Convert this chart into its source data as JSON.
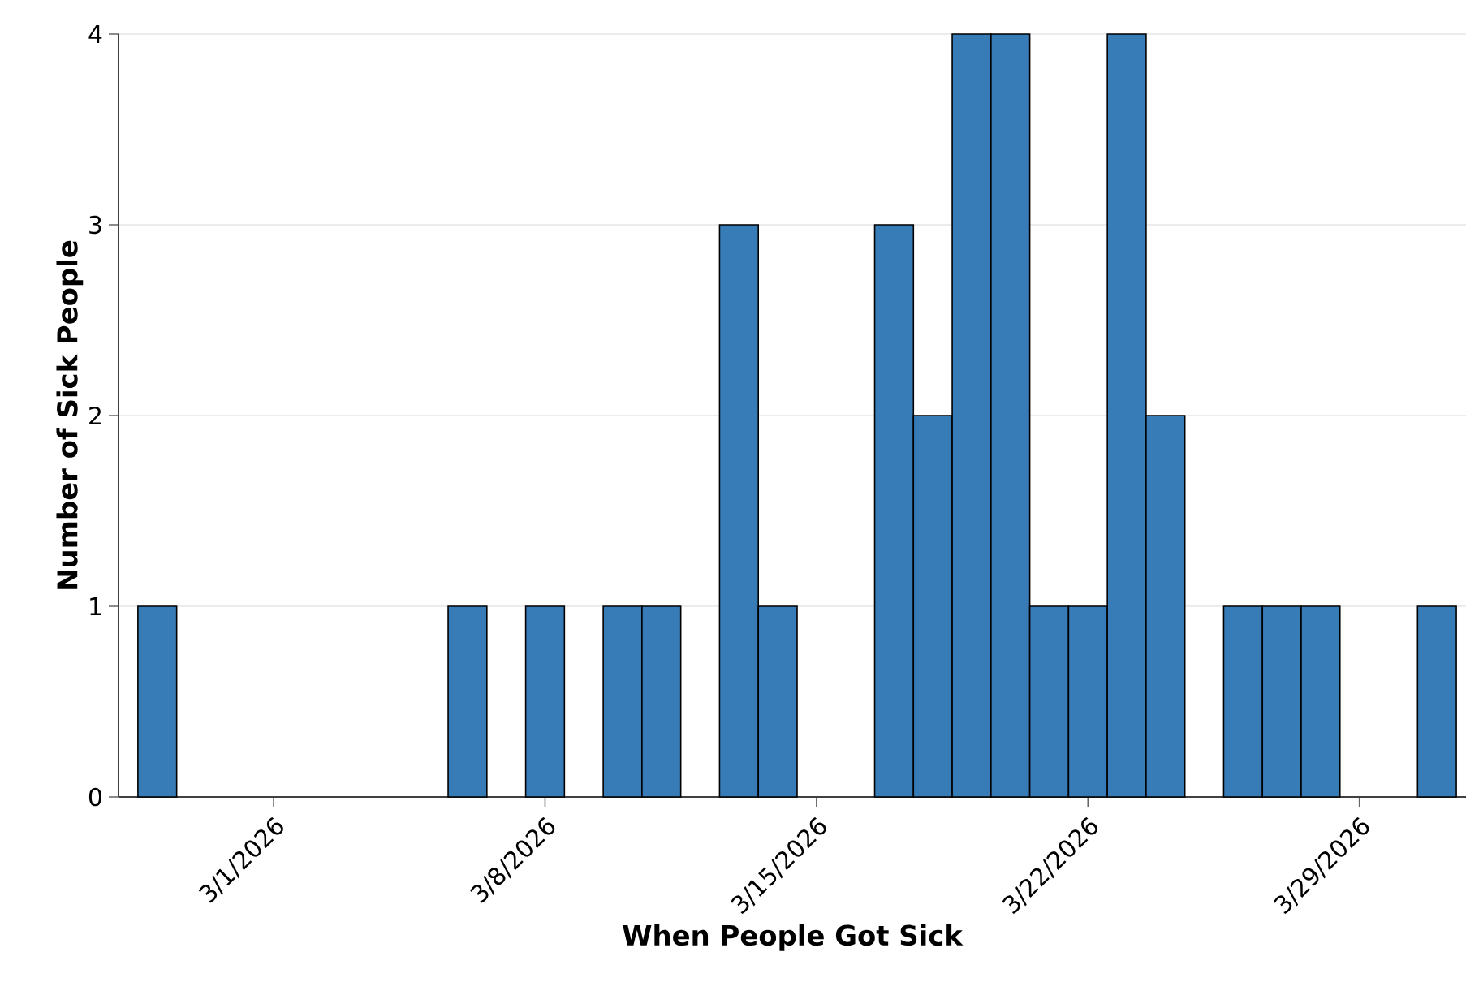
{
  "chart_data": {
    "type": "bar",
    "xlabel": "When People Got Sick",
    "ylabel": "Number of Sick People",
    "x": [
      "2026-02-26",
      "2026-03-06",
      "2026-03-08",
      "2026-03-10",
      "2026-03-11",
      "2026-03-13",
      "2026-03-14",
      "2026-03-17",
      "2026-03-18",
      "2026-03-19",
      "2026-03-20",
      "2026-03-21",
      "2026-03-22",
      "2026-03-23",
      "2026-03-24",
      "2026-03-26",
      "2026-03-27",
      "2026-03-28",
      "2026-03-31"
    ],
    "values": [
      1,
      1,
      1,
      1,
      1,
      3,
      1,
      3,
      2,
      4,
      4,
      1,
      1,
      4,
      2,
      1,
      1,
      1,
      1
    ],
    "color": "#377bb7",
    "xlim": [
      "2026-02-25",
      "2026-03-31T18:00"
    ],
    "xticks": [
      {
        "value": "2026-03-01",
        "label": "3/1/2026"
      },
      {
        "value": "2026-03-08",
        "label": "3/8/2026"
      },
      {
        "value": "2026-03-15",
        "label": "3/15/2026"
      },
      {
        "value": "2026-03-22",
        "label": "3/22/2026"
      },
      {
        "value": "2026-03-29",
        "label": "3/29/2026"
      }
    ],
    "ylim": [
      0,
      4
    ],
    "yticks": [
      0,
      1,
      2,
      3,
      4
    ],
    "grid": "y"
  }
}
